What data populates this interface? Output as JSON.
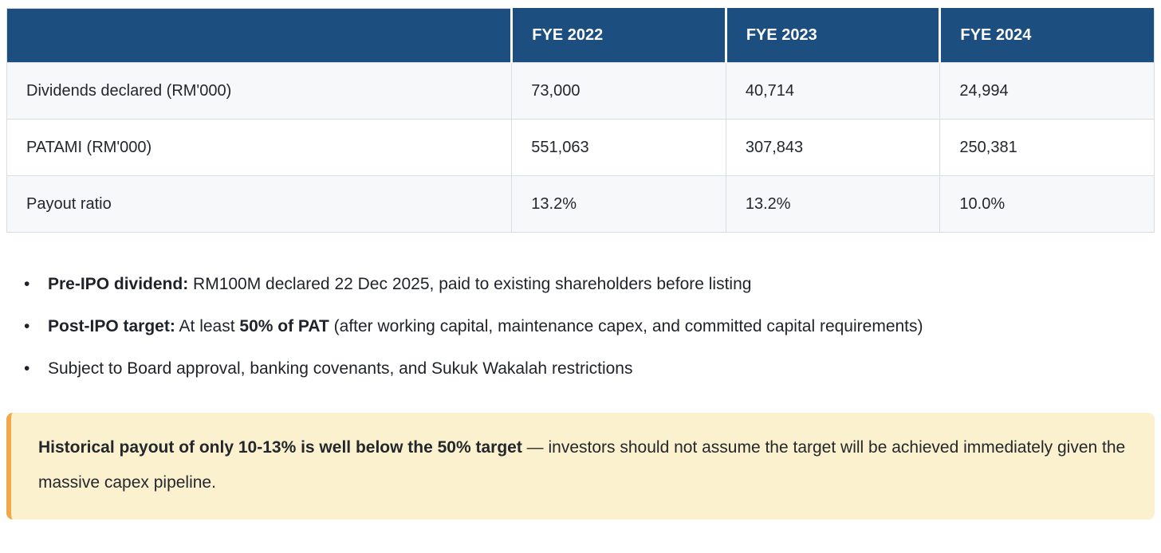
{
  "table": {
    "columns": [
      "",
      "FYE 2022",
      "FYE 2023",
      "FYE 2024"
    ],
    "rows": [
      {
        "label": "Dividends declared (RM'000)",
        "values": [
          "73,000",
          "40,714",
          "24,994"
        ]
      },
      {
        "label": "PATAMI (RM'000)",
        "values": [
          "551,063",
          "307,843",
          "250,381"
        ]
      },
      {
        "label": "Payout ratio",
        "values": [
          "13.2%",
          "13.2%",
          "10.0%"
        ]
      }
    ],
    "header_bg": "#1c4e80",
    "stripe_bg": "#f7f8f9"
  },
  "bullets": [
    {
      "bold1": "Pre-IPO dividend:",
      "text1": " RM100M declared 22 Dec 2025, paid to existing shareholders before listing",
      "bold2": "",
      "text2": ""
    },
    {
      "bold1": "Post-IPO target:",
      "text1": " At least ",
      "bold2": "50% of PAT",
      "text2": " (after working capital, maintenance capex, and committed capital requirements)"
    },
    {
      "bold1": "",
      "text1": "Subject to Board approval, banking covenants, and Sukuk Wakalah restrictions",
      "bold2": "",
      "text2": ""
    }
  ],
  "bullet_marker": "•",
  "callout": {
    "bold": "Historical payout of only 10-13% is well below the 50% target",
    "rest": " — investors should not assume the target will be achieved immediately given the massive capex pipeline.",
    "bg": "#fcf1cf",
    "accent": "#f0a84a"
  }
}
